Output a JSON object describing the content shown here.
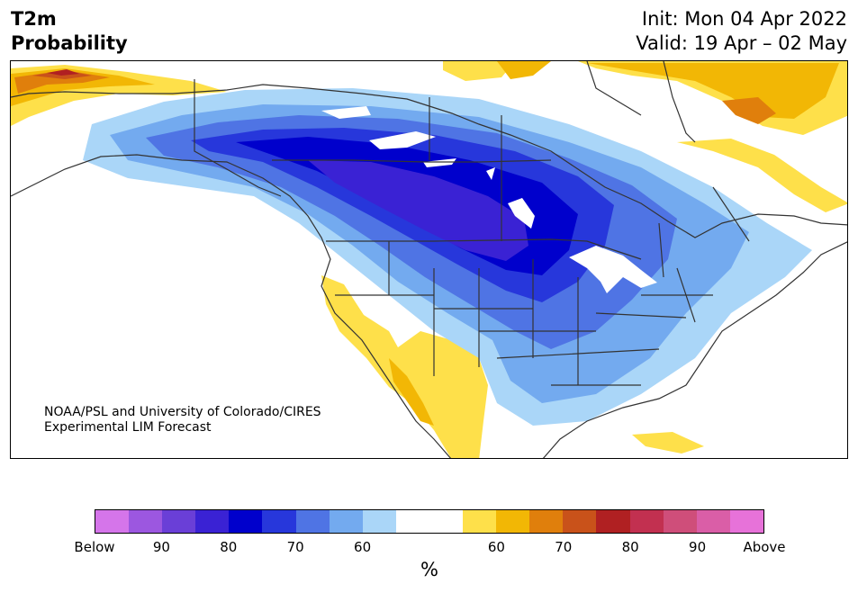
{
  "header": {
    "variable": "T2m",
    "metric": "Probability",
    "init": "Init: Mon 04 Apr 2022",
    "valid": "Valid: 19 Apr – 02 May"
  },
  "credit": {
    "line1": "NOAA/PSL and University of Colorado/CIRES",
    "line2": "Experimental LIM Forecast"
  },
  "legend": {
    "unit": "%",
    "colors": [
      "#d575ea",
      "#9c57e0",
      "#6a3fd7",
      "#3a22d4",
      "#0000cc",
      "#2737db",
      "#4f74e4",
      "#73aaef",
      "#aad6f8",
      "#ffffff",
      "#ffffff",
      "#fee04a",
      "#f2b705",
      "#e07f0c",
      "#c9521a",
      "#b02022",
      "#c23050",
      "#cf4e7a",
      "#da5ea7",
      "#e772d9"
    ],
    "labels": [
      "Below",
      "90",
      "80",
      "70",
      "60",
      "60",
      "70",
      "80",
      "90",
      "Above"
    ]
  },
  "map": {
    "region": "North America",
    "cold_colors": [
      "#aad6f8",
      "#73aaef",
      "#4f74e4",
      "#2737db",
      "#0000cc",
      "#3a22d4"
    ],
    "warm_colors": [
      "#fee04a",
      "#f2b705",
      "#e07f0c",
      "#c9521a",
      "#b02022"
    ],
    "border_color": "#333333"
  }
}
